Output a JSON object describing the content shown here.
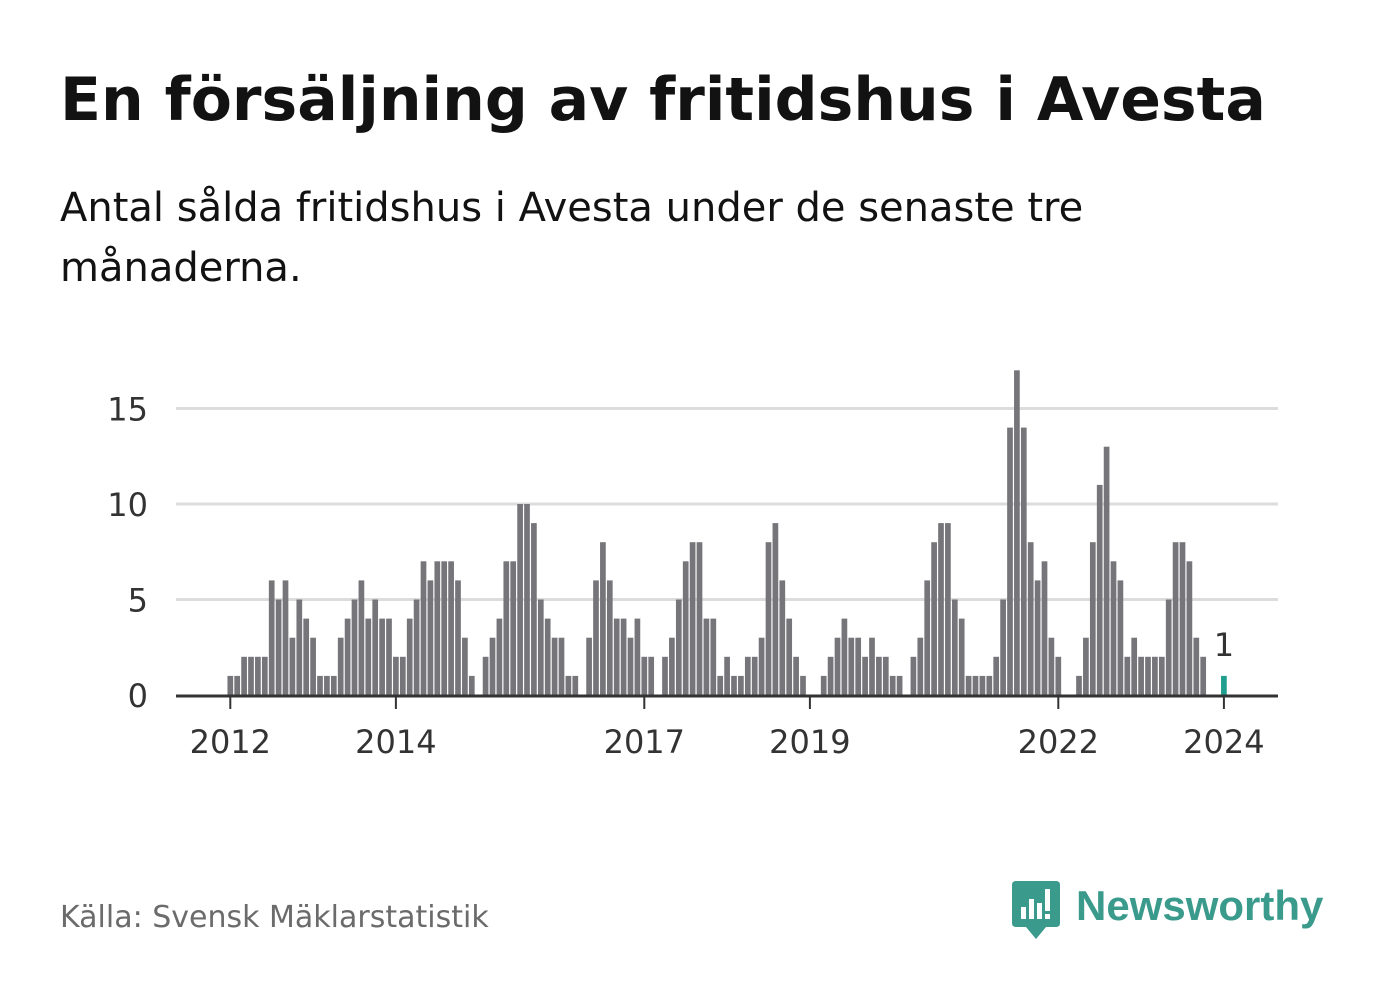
{
  "title": "En försäljning av fritidshus i Avesta",
  "subtitle": "Antal sålda fritidshus i Avesta under de senaste tre månaderna.",
  "source": "Källa: Svensk Mäklarstatistik",
  "brand": {
    "name": "Newsworthy",
    "icon": "newsworthy-logo-icon",
    "color": "#3a9a8c"
  },
  "chart_data": {
    "type": "bar",
    "title": "En försäljning av fritidshus i Avesta",
    "xlabel": "",
    "ylabel": "",
    "ylim": [
      0,
      17
    ],
    "yticks": [
      0,
      5,
      10,
      15
    ],
    "grid": true,
    "legend": "none",
    "x_start": "2011-06",
    "frequency": "monthly",
    "xtick_labels": [
      {
        "index": 7,
        "label": "2012"
      },
      {
        "index": 31,
        "label": "2014"
      },
      {
        "index": 67,
        "label": "2017"
      },
      {
        "index": 91,
        "label": "2019"
      },
      {
        "index": 127,
        "label": "2022"
      },
      {
        "index": 151,
        "label": "2024"
      }
    ],
    "values": [
      0,
      0,
      0,
      0,
      0,
      0,
      0,
      1,
      1,
      2,
      2,
      2,
      2,
      6,
      5,
      6,
      3,
      5,
      4,
      3,
      1,
      1,
      1,
      3,
      4,
      5,
      6,
      4,
      5,
      4,
      4,
      2,
      2,
      4,
      5,
      7,
      6,
      7,
      7,
      7,
      6,
      3,
      1,
      0,
      2,
      3,
      4,
      7,
      7,
      10,
      10,
      9,
      5,
      4,
      3,
      3,
      1,
      1,
      0,
      3,
      6,
      8,
      6,
      4,
      4,
      3,
      4,
      2,
      2,
      0,
      2,
      3,
      5,
      7,
      8,
      8,
      4,
      4,
      1,
      2,
      1,
      1,
      2,
      2,
      3,
      8,
      9,
      6,
      4,
      2,
      1,
      0,
      0,
      1,
      2,
      3,
      4,
      3,
      3,
      2,
      3,
      2,
      2,
      1,
      1,
      0,
      2,
      3,
      6,
      8,
      9,
      9,
      5,
      4,
      1,
      1,
      1,
      1,
      2,
      5,
      14,
      17,
      14,
      8,
      6,
      7,
      3,
      2,
      0,
      0,
      1,
      3,
      8,
      11,
      13,
      7,
      6,
      2,
      3,
      2,
      2,
      2,
      2,
      5,
      8,
      8,
      7,
      3,
      2,
      0,
      0,
      1
    ],
    "highlight_index": 151,
    "highlight_label": "1",
    "bar_color": "#76767a",
    "highlight_color": "#1f9e8e",
    "grid_color": "#dcdcdc",
    "axis_color": "#333333"
  }
}
